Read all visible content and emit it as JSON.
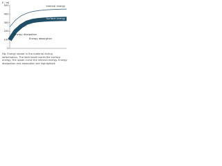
{
  "chart_data": {
    "type": "line",
    "y_label": "E / mJ",
    "x": [
      0,
      1,
      2,
      3,
      4,
      5,
      6,
      7,
      8,
      9,
      10
    ],
    "xlim": [
      0,
      10
    ],
    "ylim": [
      0,
      500
    ],
    "yticks": [
      0,
      100,
      200,
      300,
      400,
      500
    ],
    "series": [
      {
        "name": "Internal energy",
        "color": "#4a6f8a",
        "values": [
          250,
          330,
          380,
          410,
          430,
          440,
          448,
          452,
          455,
          457,
          458
        ]
      },
      {
        "name": "Surface energy",
        "color": "#1f4e66",
        "values": [
          100,
          200,
          260,
          300,
          320,
          330,
          336,
          340,
          342,
          344,
          345
        ]
      }
    ],
    "annotations": [
      "Energy dissipation",
      "Energy absorption"
    ],
    "caption": "Fig. Energy stored in the material during deformation. The dark band marks the surface energy; the upper curve the internal energy. Energy dissipation and absorption are highlighted."
  }
}
